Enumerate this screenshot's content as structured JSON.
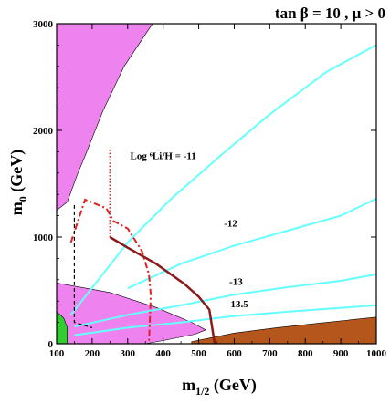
{
  "chart_data": {
    "type": "line",
    "title": "tan β = 10 ,  μ > 0",
    "xlabel": "m",
    "xlabel_sub": "1/2",
    "xlabel_unit": " (GeV)",
    "ylabel": "m",
    "ylabel_sub": "0",
    "ylabel_unit": " (GeV)",
    "xlim": [
      100,
      1000
    ],
    "ylim": [
      0,
      3000
    ],
    "xticks": [
      100,
      200,
      300,
      400,
      500,
      600,
      700,
      800,
      900,
      1000
    ],
    "yticks": [
      0,
      1000,
      2000,
      3000
    ],
    "grid": false,
    "colors": {
      "excluded_region": "#ee82ee",
      "lsp_region": "#b5561c",
      "green_region": "#33cc33",
      "contours": "#66ffff",
      "dark_red_line": "#8b1a1a",
      "red_dashdot": "#dd2222",
      "red_dotted": "#cc2222"
    },
    "regions": [
      {
        "kind": "excluded-top",
        "color": "#ee82ee",
        "points": [
          [
            100,
            3000
          ],
          [
            100,
            1250
          ],
          [
            130,
            1330
          ],
          [
            160,
            1600
          ],
          [
            180,
            1760
          ],
          [
            230,
            2180
          ],
          [
            290,
            2600
          ],
          [
            350,
            2900
          ],
          [
            370,
            3000
          ]
        ]
      },
      {
        "kind": "excluded-bottom",
        "color": "#ee82ee",
        "points": [
          [
            100,
            0
          ],
          [
            100,
            570
          ],
          [
            250,
            480
          ],
          [
            380,
            340
          ],
          [
            480,
            200
          ],
          [
            520,
            130
          ],
          [
            490,
            90
          ],
          [
            400,
            30
          ],
          [
            350,
            0
          ]
        ]
      },
      {
        "kind": "charged-lsp",
        "color": "#b5561c",
        "points": [
          [
            480,
            0
          ],
          [
            1000,
            0
          ],
          [
            1000,
            250
          ],
          [
            860,
            200
          ],
          [
            720,
            150
          ],
          [
            600,
            100
          ],
          [
            480,
            20
          ]
        ]
      },
      {
        "kind": "green",
        "color": "#33cc33",
        "points": [
          [
            100,
            0
          ],
          [
            100,
            300
          ],
          [
            120,
            240
          ],
          [
            130,
            150
          ],
          [
            130,
            0
          ]
        ]
      }
    ],
    "contours": [
      {
        "label": "Log ⁶Li/H = -11",
        "label_at": [
          400,
          1730
        ],
        "points": [
          [
            140,
            270
          ],
          [
            300,
            950
          ],
          [
            420,
            1350
          ],
          [
            560,
            1760
          ],
          [
            700,
            2150
          ],
          [
            860,
            2550
          ],
          [
            1000,
            2800
          ]
        ]
      },
      {
        "label": "-12",
        "label_at": [
          590,
          1100
        ],
        "points": [
          [
            300,
            520
          ],
          [
            450,
            750
          ],
          [
            600,
            920
          ],
          [
            750,
            1060
          ],
          [
            900,
            1200
          ],
          [
            1000,
            1360
          ]
        ]
      },
      {
        "label": "-13",
        "label_at": [
          605,
          550
        ],
        "points": [
          [
            150,
            160
          ],
          [
            300,
            270
          ],
          [
            450,
            360
          ],
          [
            600,
            460
          ],
          [
            750,
            530
          ],
          [
            900,
            590
          ],
          [
            1000,
            650
          ]
        ]
      },
      {
        "label": "-13.5",
        "label_at": [
          610,
          340
        ],
        "points": [
          [
            150,
            80
          ],
          [
            300,
            150
          ],
          [
            450,
            200
          ],
          [
            600,
            260
          ],
          [
            750,
            300
          ],
          [
            1000,
            360
          ]
        ]
      }
    ],
    "extra_lines": [
      {
        "style": "dark-red-solid",
        "points": [
          [
            250,
            1000
          ],
          [
            300,
            900
          ],
          [
            380,
            750
          ],
          [
            460,
            560
          ],
          [
            500,
            440
          ],
          [
            530,
            320
          ],
          [
            545,
            0
          ]
        ]
      },
      {
        "style": "red-dashdot",
        "points": [
          [
            140,
            950
          ],
          [
            180,
            1350
          ],
          [
            240,
            1270
          ],
          [
            260,
            1150
          ],
          [
            300,
            1080
          ],
          [
            340,
            870
          ],
          [
            360,
            650
          ],
          [
            365,
            460
          ],
          [
            360,
            0
          ]
        ]
      },
      {
        "style": "red-dotted",
        "points": [
          [
            250,
            1820
          ],
          [
            250,
            1000
          ]
        ]
      },
      {
        "style": "black-dashed",
        "points": [
          [
            150,
            1300
          ],
          [
            150,
            200
          ],
          [
            200,
            150
          ]
        ]
      }
    ]
  }
}
